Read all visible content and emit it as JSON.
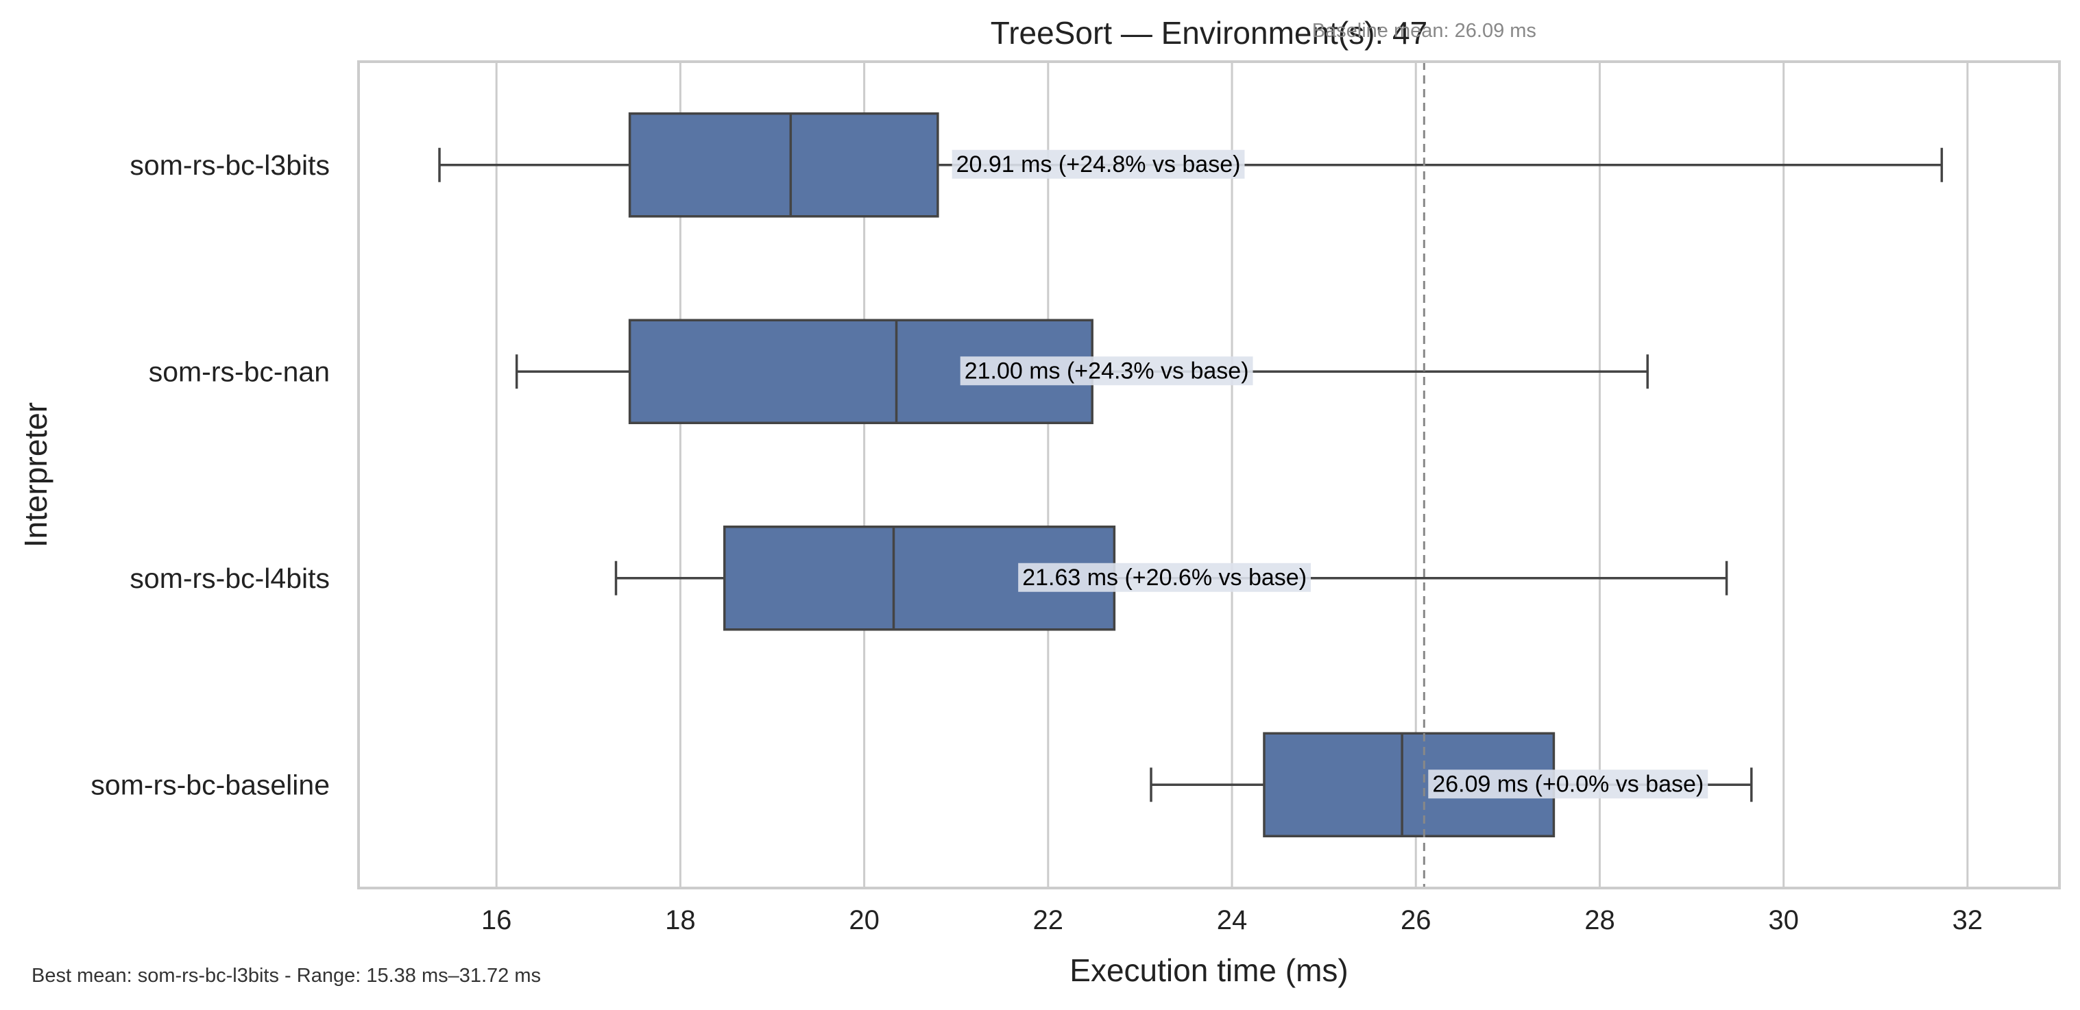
{
  "chart_data": {
    "type": "boxplot",
    "orientation": "horizontal",
    "title": "TreeSort — Environment(s): 47",
    "xlabel": "Execution time (ms)",
    "ylabel": "Interpreter",
    "xlim": [
      14.5,
      33.0
    ],
    "xticks": [
      16,
      18,
      20,
      22,
      24,
      26,
      28,
      30,
      32
    ],
    "grid": "vertical",
    "colors": {
      "box": "#5975a4",
      "line": "#444444",
      "grid": "#cccccc",
      "frame": "#cccccc",
      "baseline": "#888888",
      "label_bg": "#dde2ec"
    },
    "categories": [
      "som-rs-bc-l3bits",
      "som-rs-bc-nan",
      "som-rs-bc-l4bits",
      "som-rs-bc-baseline"
    ],
    "boxes": [
      {
        "name": "som-rs-bc-l3bits",
        "whisker_low": 15.38,
        "q1": 17.45,
        "median": 19.2,
        "q3": 20.8,
        "whisker_high": 31.72
      },
      {
        "name": "som-rs-bc-nan",
        "whisker_low": 16.22,
        "q1": 17.45,
        "median": 20.35,
        "q3": 22.48,
        "whisker_high": 28.52
      },
      {
        "name": "som-rs-bc-l4bits",
        "whisker_low": 17.3,
        "q1": 18.48,
        "median": 20.32,
        "q3": 22.72,
        "whisker_high": 29.38
      },
      {
        "name": "som-rs-bc-baseline",
        "whisker_low": 23.12,
        "q1": 24.35,
        "median": 25.85,
        "q3": 27.5,
        "whisker_high": 29.65
      }
    ],
    "annotations": [
      {
        "category": "som-rs-bc-l3bits",
        "mean": 20.91,
        "text": "20.91 ms  (+24.8% vs base)"
      },
      {
        "category": "som-rs-bc-nan",
        "mean": 21.0,
        "text": "21.00 ms  (+24.3% vs base)"
      },
      {
        "category": "som-rs-bc-l4bits",
        "mean": 21.63,
        "text": "21.63 ms  (+20.6% vs base)"
      },
      {
        "category": "som-rs-bc-baseline",
        "mean": 26.09,
        "text": "26.09 ms  (+0.0% vs base)"
      }
    ],
    "baseline": {
      "value": 26.09,
      "label": "Baseline mean: 26.09 ms"
    },
    "footer": "Best mean: som-rs-bc-l3bits - Range: 15.38 ms–31.72 ms"
  }
}
